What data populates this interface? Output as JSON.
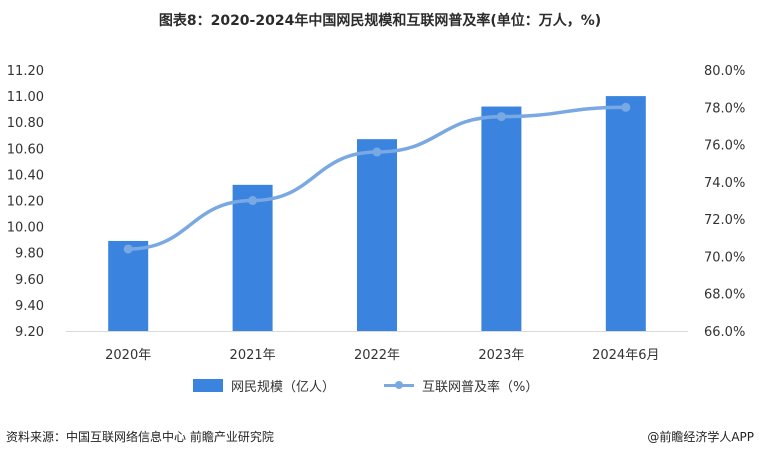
{
  "title": "图表8：2020-2024年中国网民规模和互联网普及率(单位：万人，%)",
  "chart_data": {
    "type": "bar",
    "categories": [
      "2020年",
      "2021年",
      "2022年",
      "2023年",
      "2024年6月"
    ],
    "series": [
      {
        "name": "网民规模（亿人）",
        "type": "bar",
        "axis": "left",
        "values": [
          9.89,
          10.32,
          10.67,
          10.92,
          11.0
        ]
      },
      {
        "name": "互联网普及率（%）",
        "type": "line",
        "axis": "right",
        "values": [
          70.4,
          73.0,
          75.6,
          77.5,
          78.0
        ]
      }
    ],
    "y_left": {
      "min": 9.2,
      "max": 11.2,
      "ticks": [
        "9.20",
        "9.40",
        "9.60",
        "9.80",
        "10.00",
        "10.20",
        "10.40",
        "10.60",
        "10.80",
        "11.00",
        "11.20"
      ]
    },
    "y_right": {
      "min": 66.0,
      "max": 80.0,
      "ticks": [
        "66.0%",
        "68.0%",
        "70.0%",
        "72.0%",
        "74.0%",
        "76.0%",
        "78.0%",
        "80.0%"
      ]
    },
    "grid": false,
    "legend_position": "bottom",
    "colors": {
      "bar": "#3a84e0",
      "line": "#79a8e3"
    }
  },
  "legend": {
    "bar_label": "网民规模（亿人）",
    "line_label": "互联网普及率（%）"
  },
  "footer": {
    "source": "资料来源：中国互联网络信息中心 前瞻产业研究院",
    "brand": "@前瞻经济学人APP"
  }
}
